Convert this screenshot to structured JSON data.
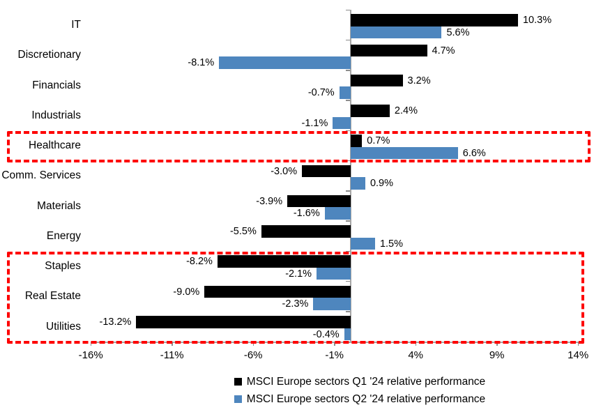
{
  "chart_data": {
    "type": "bar",
    "orientation": "horizontal",
    "title": "",
    "categories": [
      "IT",
      "Discretionary",
      "Financials",
      "Industrials",
      "Healthcare",
      "Comm. Services",
      "Materials",
      "Energy",
      "Staples",
      "Real Estate",
      "Utilities"
    ],
    "series": [
      {
        "name": "MSCI Europe sectors Q1 '24 relative performance",
        "color": "#000000",
        "values": [
          10.3,
          4.7,
          3.2,
          2.4,
          0.7,
          -3.0,
          -3.9,
          -5.5,
          -8.2,
          -9.0,
          -13.2
        ],
        "labels": [
          "10.3%",
          "4.7%",
          "3.2%",
          "2.4%",
          "0.7%",
          "-3.0%",
          "-3.9%",
          "-5.5%",
          "-8.2%",
          "-9.0%",
          "-13.2%"
        ]
      },
      {
        "name": "MSCI Europe sectors Q2 '24 relative performance",
        "color": "#4e86be",
        "values": [
          5.6,
          -8.1,
          -0.7,
          -1.1,
          6.6,
          0.9,
          -1.6,
          1.5,
          -2.1,
          -2.3,
          -0.4
        ],
        "labels": [
          "5.6%",
          "-8.1%",
          "-0.7%",
          "-1.1%",
          "6.6%",
          "0.9%",
          "-1.6%",
          "1.5%",
          "-2.1%",
          "-2.3%",
          "-0.4%"
        ]
      }
    ],
    "xlabel": "",
    "ylabel": "",
    "xlim": [
      -16,
      14
    ],
    "x_tick_values": [
      -16,
      -11,
      -6,
      -1,
      4,
      9,
      14
    ],
    "x_tick_labels": [
      "-16%",
      "-11%",
      "-6%",
      "-1%",
      "4%",
      "9%",
      "14%"
    ],
    "grid": false,
    "legend_position": "bottom",
    "highlights": [
      {
        "sectors": [
          "Healthcare"
        ],
        "style": "dashed",
        "color": "#fe0000"
      },
      {
        "sectors": [
          "Staples",
          "Real Estate",
          "Utilities"
        ],
        "style": "dashed",
        "color": "#fe0000"
      }
    ]
  },
  "legend": {
    "items": [
      {
        "label": "MSCI Europe sectors Q1 '24 relative performance",
        "swatch_color": "#000000"
      },
      {
        "label": "MSCI Europe sectors Q2 '24 relative performance",
        "swatch_color": "#4e86be"
      }
    ]
  },
  "colors": {
    "q1_bar": "#000000",
    "q2_bar": "#4e86be",
    "highlight_border": "#fe0000",
    "axis": "#a6a6a6",
    "text": "#000000",
    "background": "#ffffff"
  }
}
